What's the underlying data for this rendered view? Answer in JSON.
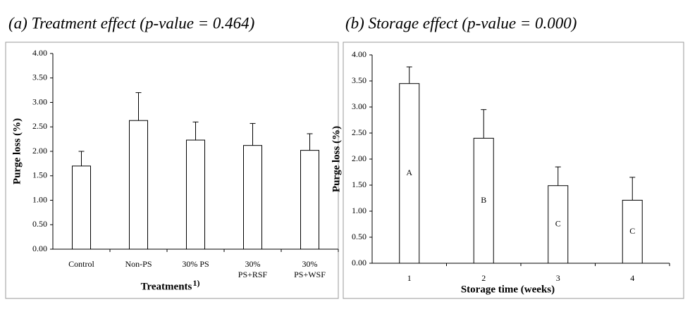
{
  "chart_data": [
    {
      "type": "bar",
      "title": "(a) Treatment effect (p-value = 0.464)",
      "categories": [
        "Control",
        "Non-PS",
        "30% PS",
        "30% PS+RSF",
        "30% PS+WSF"
      ],
      "values": [
        1.7,
        2.63,
        2.23,
        2.12,
        2.02
      ],
      "errors": [
        0.3,
        0.57,
        0.37,
        0.45,
        0.34
      ],
      "xlabel": "Treatments",
      "xlabel_note": "1)",
      "ylabel": "Purge loss (%)",
      "ylim": [
        0,
        4
      ],
      "yticks": [
        {
          "value": 0,
          "label": "0.00"
        },
        {
          "value": 0.5,
          "label": "0.50"
        },
        {
          "value": 1,
          "label": "1.00"
        },
        {
          "value": 1.5,
          "label": "1.50"
        },
        {
          "value": 2,
          "label": "2.00"
        },
        {
          "value": 2.5,
          "label": "2.50"
        },
        {
          "value": 3,
          "label": "3.00"
        },
        {
          "value": 3.5,
          "label": "3.50"
        },
        {
          "value": 4,
          "label": "4.00"
        }
      ],
      "color": "#ffffff"
    },
    {
      "type": "bar",
      "title": "(b) Storage effect (p-value = 0.000)",
      "categories": [
        "1",
        "2",
        "3",
        "4"
      ],
      "values": [
        3.45,
        2.4,
        1.49,
        1.21
      ],
      "errors": [
        0.32,
        0.55,
        0.36,
        0.44
      ],
      "annotations": [
        "A",
        "B",
        "C",
        "C"
      ],
      "xlabel": "Storage time (weeks)",
      "ylabel": "Purge loss (%)",
      "ylim": [
        0,
        4
      ],
      "yticks": [
        {
          "value": 0,
          "label": "0.00"
        },
        {
          "value": 0.5,
          "label": "0.50"
        },
        {
          "value": 1,
          "label": "1.00"
        },
        {
          "value": 1.5,
          "label": "1.50"
        },
        {
          "value": 2,
          "label": "2.00"
        },
        {
          "value": 2.5,
          "label": "2.50"
        },
        {
          "value": 3,
          "label": "3.00"
        },
        {
          "value": 3.5,
          "label": "3.50"
        },
        {
          "value": 4,
          "label": "4.00"
        }
      ],
      "color": "#ffffff"
    }
  ]
}
